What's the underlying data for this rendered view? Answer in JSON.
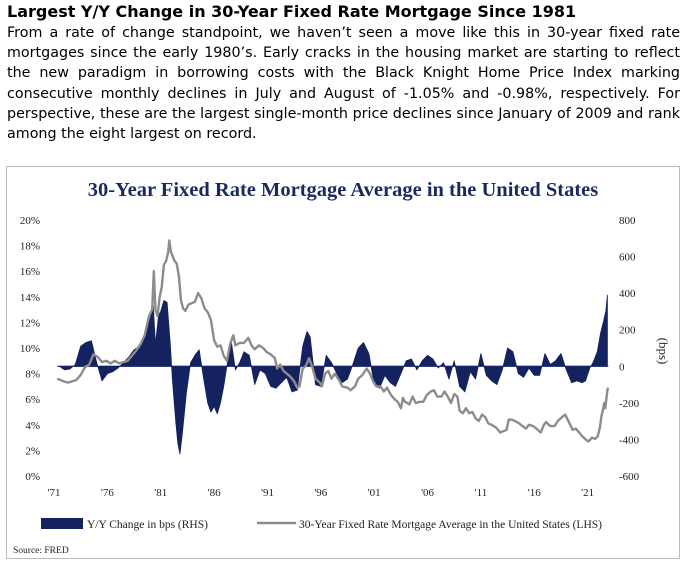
{
  "heading": "Largest Y/Y Change in 30-Year Fixed Rate Mortgage Since 1981",
  "paragraph": "From a rate of change standpoint, we haven’t seen a move like this in 30-year fixed rate mortgages since the early 1980’s. Early cracks in the housing market are starting to reflect the new paradigm in borrowing costs with the Black Knight Home Price Index marking consecutive monthly declines in July and August of -1.05% and -0.98%, respectively. For perspective, these are the largest single-month price declines since January of 2009 and rank among the eight largest on record.",
  "source": "Source: FRED",
  "colors": {
    "bars": "#142260",
    "line": "#8c8c8c",
    "title": "#1b2a5e"
  },
  "chart_data": {
    "type": "bar+line",
    "title": "30-Year Fixed Rate Mortgage Average in the United States",
    "y_left": {
      "ticks": [
        "0%",
        "2%",
        "4%",
        "6%",
        "8%",
        "10%",
        "12%",
        "14%",
        "16%",
        "18%",
        "20%"
      ],
      "range": [
        0,
        20
      ],
      "unit": "%"
    },
    "y_right": {
      "ticks": [
        "-600",
        "-400",
        "-200",
        "0",
        "200",
        "400",
        "600",
        "800"
      ],
      "range": [
        -600,
        800
      ],
      "label": "(bps)"
    },
    "x_ticks": [
      "'71",
      "'76",
      "'81",
      "'86",
      "'91",
      "'96",
      "'01",
      "'06",
      "'11",
      "'16",
      "'21"
    ],
    "x_range": [
      1971,
      2023
    ],
    "grid": false,
    "legend_position": "bottom",
    "series": [
      {
        "name": "Y/Y Change in bps (RHS)",
        "type": "bar",
        "axis": "right",
        "points": [
          [
            1971.5,
            0
          ],
          [
            1972,
            -20
          ],
          [
            1972.5,
            -15
          ],
          [
            1973,
            10
          ],
          [
            1973.5,
            110
          ],
          [
            1974,
            130
          ],
          [
            1974.5,
            140
          ],
          [
            1975,
            20
          ],
          [
            1975.5,
            -80
          ],
          [
            1976,
            -40
          ],
          [
            1976.5,
            -30
          ],
          [
            1977,
            -10
          ],
          [
            1977.5,
            20
          ],
          [
            1978,
            50
          ],
          [
            1978.5,
            90
          ],
          [
            1979,
            110
          ],
          [
            1979.5,
            160
          ],
          [
            1980,
            260
          ],
          [
            1980.3,
            330
          ],
          [
            1980.5,
            120
          ],
          [
            1980.8,
            280
          ],
          [
            1981,
            300
          ],
          [
            1981.3,
            360
          ],
          [
            1981.6,
            350
          ],
          [
            1981.9,
            120
          ],
          [
            1982.1,
            -80
          ],
          [
            1982.4,
            -300
          ],
          [
            1982.6,
            -420
          ],
          [
            1982.8,
            -480
          ],
          [
            1983,
            -380
          ],
          [
            1983.4,
            -150
          ],
          [
            1983.8,
            20
          ],
          [
            1984.2,
            60
          ],
          [
            1984.6,
            90
          ],
          [
            1985,
            -60
          ],
          [
            1985.4,
            -200
          ],
          [
            1985.7,
            -250
          ],
          [
            1986,
            -220
          ],
          [
            1986.3,
            -260
          ],
          [
            1986.6,
            -200
          ],
          [
            1986.9,
            -110
          ],
          [
            1987.3,
            40
          ],
          [
            1987.6,
            140
          ],
          [
            1988,
            -20
          ],
          [
            1988.4,
            20
          ],
          [
            1988.8,
            80
          ],
          [
            1989.3,
            60
          ],
          [
            1989.8,
            -100
          ],
          [
            1990.3,
            -20
          ],
          [
            1990.8,
            -40
          ],
          [
            1991.3,
            -110
          ],
          [
            1991.8,
            -120
          ],
          [
            1992.3,
            -90
          ],
          [
            1992.8,
            -60
          ],
          [
            1993.3,
            -140
          ],
          [
            1993.8,
            -130
          ],
          [
            1994.3,
            110
          ],
          [
            1994.7,
            190
          ],
          [
            1995,
            160
          ],
          [
            1995.5,
            -100
          ],
          [
            1996,
            -110
          ],
          [
            1996.5,
            60
          ],
          [
            1997,
            20
          ],
          [
            1997.5,
            -40
          ],
          [
            1998,
            -90
          ],
          [
            1998.5,
            -70
          ],
          [
            1999,
            10
          ],
          [
            1999.5,
            100
          ],
          [
            2000,
            130
          ],
          [
            2000.5,
            70
          ],
          [
            2001,
            -100
          ],
          [
            2001.5,
            -120
          ],
          [
            2002,
            -50
          ],
          [
            2002.5,
            -90
          ],
          [
            2003,
            -110
          ],
          [
            2003.5,
            -40
          ],
          [
            2004,
            30
          ],
          [
            2004.5,
            40
          ],
          [
            2005,
            -20
          ],
          [
            2005.5,
            30
          ],
          [
            2006,
            60
          ],
          [
            2006.5,
            40
          ],
          [
            2007,
            -10
          ],
          [
            2007.5,
            20
          ],
          [
            2008,
            -70
          ],
          [
            2008.5,
            30
          ],
          [
            2009,
            -110
          ],
          [
            2009.5,
            -140
          ],
          [
            2010,
            -30
          ],
          [
            2010.5,
            -70
          ],
          [
            2011,
            70
          ],
          [
            2011.5,
            -50
          ],
          [
            2012,
            -80
          ],
          [
            2012.5,
            -100
          ],
          [
            2013,
            -20
          ],
          [
            2013.5,
            100
          ],
          [
            2014,
            80
          ],
          [
            2014.5,
            -40
          ],
          [
            2015,
            -60
          ],
          [
            2015.5,
            -10
          ],
          [
            2016,
            -50
          ],
          [
            2016.5,
            -50
          ],
          [
            2017,
            70
          ],
          [
            2017.5,
            10
          ],
          [
            2018,
            30
          ],
          [
            2018.5,
            70
          ],
          [
            2019,
            -20
          ],
          [
            2019.5,
            -90
          ],
          [
            2020,
            -80
          ],
          [
            2020.5,
            -90
          ],
          [
            2020.8,
            -80
          ],
          [
            2021.2,
            -10
          ],
          [
            2021.5,
            20
          ],
          [
            2021.9,
            80
          ],
          [
            2022.2,
            180
          ],
          [
            2022.5,
            250
          ],
          [
            2022.7,
            300
          ],
          [
            2022.85,
            390
          ]
        ]
      },
      {
        "name": "30-Year Fixed Rate Mortgage Average in the United States (LHS)",
        "type": "line",
        "axis": "left",
        "points": [
          [
            1971.3,
            7.6
          ],
          [
            1971.6,
            7.5
          ],
          [
            1971.9,
            7.4
          ],
          [
            1972.3,
            7.3
          ],
          [
            1972.7,
            7.4
          ],
          [
            1973.1,
            7.5
          ],
          [
            1973.5,
            7.9
          ],
          [
            1973.9,
            8.5
          ],
          [
            1974.3,
            8.7
          ],
          [
            1974.7,
            9.5
          ],
          [
            1975.1,
            9.3
          ],
          [
            1975.5,
            8.9
          ],
          [
            1975.9,
            9.0
          ],
          [
            1976.3,
            8.8
          ],
          [
            1976.7,
            9.0
          ],
          [
            1977.1,
            8.8
          ],
          [
            1977.5,
            8.9
          ],
          [
            1977.9,
            9.0
          ],
          [
            1978.3,
            9.4
          ],
          [
            1978.7,
            9.8
          ],
          [
            1979.1,
            10.3
          ],
          [
            1979.5,
            11.0
          ],
          [
            1979.9,
            12.5
          ],
          [
            1980.2,
            13.0
          ],
          [
            1980.35,
            16.0
          ],
          [
            1980.5,
            13.0
          ],
          [
            1980.7,
            12.5
          ],
          [
            1980.9,
            14.0
          ],
          [
            1981.1,
            14.8
          ],
          [
            1981.3,
            16.5
          ],
          [
            1981.5,
            16.8
          ],
          [
            1981.7,
            17.5
          ],
          [
            1981.8,
            18.4
          ],
          [
            1981.95,
            17.5
          ],
          [
            1982.1,
            17.2
          ],
          [
            1982.3,
            16.8
          ],
          [
            1982.5,
            16.6
          ],
          [
            1982.7,
            15.6
          ],
          [
            1982.9,
            13.7
          ],
          [
            1983.1,
            13.1
          ],
          [
            1983.3,
            12.9
          ],
          [
            1983.6,
            13.4
          ],
          [
            1983.9,
            13.5
          ],
          [
            1984.2,
            13.6
          ],
          [
            1984.5,
            14.3
          ],
          [
            1984.8,
            13.9
          ],
          [
            1985.1,
            13.1
          ],
          [
            1985.4,
            12.8
          ],
          [
            1985.7,
            12.2
          ],
          [
            1986.0,
            10.6
          ],
          [
            1986.3,
            10.1
          ],
          [
            1986.6,
            10.2
          ],
          [
            1986.9,
            9.4
          ],
          [
            1987.2,
            9.0
          ],
          [
            1987.5,
            10.3
          ],
          [
            1987.8,
            11.0
          ],
          [
            1988.0,
            10.2
          ],
          [
            1988.4,
            10.4
          ],
          [
            1988.8,
            10.4
          ],
          [
            1989.2,
            10.8
          ],
          [
            1989.5,
            10.2
          ],
          [
            1989.8,
            9.9
          ],
          [
            1990.2,
            10.2
          ],
          [
            1990.6,
            10.0
          ],
          [
            1990.9,
            9.7
          ],
          [
            1991.3,
            9.5
          ],
          [
            1991.7,
            9.2
          ],
          [
            1991.9,
            8.4
          ],
          [
            1992.2,
            8.7
          ],
          [
            1992.5,
            8.2
          ],
          [
            1992.8,
            8.0
          ],
          [
            1993.1,
            7.8
          ],
          [
            1993.5,
            7.4
          ],
          [
            1993.8,
            6.9
          ],
          [
            1994.0,
            7.0
          ],
          [
            1994.3,
            8.4
          ],
          [
            1994.6,
            8.6
          ],
          [
            1994.9,
            9.2
          ],
          [
            1995.2,
            8.5
          ],
          [
            1995.5,
            7.6
          ],
          [
            1995.9,
            7.3
          ],
          [
            1996.1,
            7.0
          ],
          [
            1996.4,
            8.0
          ],
          [
            1996.7,
            8.2
          ],
          [
            1997.0,
            7.6
          ],
          [
            1997.3,
            8.0
          ],
          [
            1997.7,
            7.5
          ],
          [
            1998.0,
            7.0
          ],
          [
            1998.5,
            6.9
          ],
          [
            1998.8,
            6.7
          ],
          [
            1999.2,
            7.0
          ],
          [
            1999.5,
            7.6
          ],
          [
            1999.9,
            7.9
          ],
          [
            2000.3,
            8.4
          ],
          [
            2000.6,
            8.0
          ],
          [
            2000.9,
            7.4
          ],
          [
            2001.2,
            7.0
          ],
          [
            2001.6,
            7.0
          ],
          [
            2001.9,
            6.6
          ],
          [
            2002.2,
            6.9
          ],
          [
            2002.6,
            6.3
          ],
          [
            2002.9,
            6.0
          ],
          [
            2003.2,
            5.8
          ],
          [
            2003.5,
            5.3
          ],
          [
            2003.7,
            6.1
          ],
          [
            2003.9,
            5.8
          ],
          [
            2004.3,
            5.6
          ],
          [
            2004.6,
            6.2
          ],
          [
            2004.9,
            5.7
          ],
          [
            2005.3,
            5.8
          ],
          [
            2005.6,
            5.8
          ],
          [
            2005.9,
            6.3
          ],
          [
            2006.3,
            6.6
          ],
          [
            2006.6,
            6.7
          ],
          [
            2006.9,
            6.2
          ],
          [
            2007.3,
            6.2
          ],
          [
            2007.6,
            6.6
          ],
          [
            2007.9,
            6.2
          ],
          [
            2008.2,
            5.7
          ],
          [
            2008.5,
            6.4
          ],
          [
            2008.8,
            6.2
          ],
          [
            2009.0,
            5.1
          ],
          [
            2009.3,
            4.9
          ],
          [
            2009.6,
            5.3
          ],
          [
            2009.9,
            4.9
          ],
          [
            2010.2,
            5.0
          ],
          [
            2010.5,
            4.5
          ],
          [
            2010.8,
            4.3
          ],
          [
            2011.1,
            4.8
          ],
          [
            2011.4,
            4.6
          ],
          [
            2011.7,
            4.1
          ],
          [
            2012.0,
            4.0
          ],
          [
            2012.4,
            3.8
          ],
          [
            2012.8,
            3.4
          ],
          [
            2013.1,
            3.5
          ],
          [
            2013.4,
            3.6
          ],
          [
            2013.6,
            4.4
          ],
          [
            2013.9,
            4.4
          ],
          [
            2014.2,
            4.3
          ],
          [
            2014.6,
            4.1
          ],
          [
            2014.9,
            3.9
          ],
          [
            2015.2,
            3.7
          ],
          [
            2015.5,
            4.0
          ],
          [
            2015.9,
            3.9
          ],
          [
            2016.2,
            3.7
          ],
          [
            2016.6,
            3.4
          ],
          [
            2016.9,
            4.0
          ],
          [
            2017.1,
            4.2
          ],
          [
            2017.5,
            3.9
          ],
          [
            2017.9,
            3.9
          ],
          [
            2018.2,
            4.3
          ],
          [
            2018.6,
            4.6
          ],
          [
            2018.9,
            4.8
          ],
          [
            2019.2,
            4.3
          ],
          [
            2019.6,
            3.6
          ],
          [
            2019.9,
            3.7
          ],
          [
            2020.2,
            3.4
          ],
          [
            2020.5,
            3.1
          ],
          [
            2020.9,
            2.8
          ],
          [
            2021.1,
            2.7
          ],
          [
            2021.4,
            3.0
          ],
          [
            2021.7,
            2.9
          ],
          [
            2021.95,
            3.1
          ],
          [
            2022.15,
            3.8
          ],
          [
            2022.3,
            4.7
          ],
          [
            2022.45,
            5.2
          ],
          [
            2022.55,
            5.7
          ],
          [
            2022.65,
            5.3
          ],
          [
            2022.75,
            6.0
          ],
          [
            2022.85,
            6.7
          ],
          [
            2022.92,
            6.9
          ]
        ]
      }
    ]
  }
}
